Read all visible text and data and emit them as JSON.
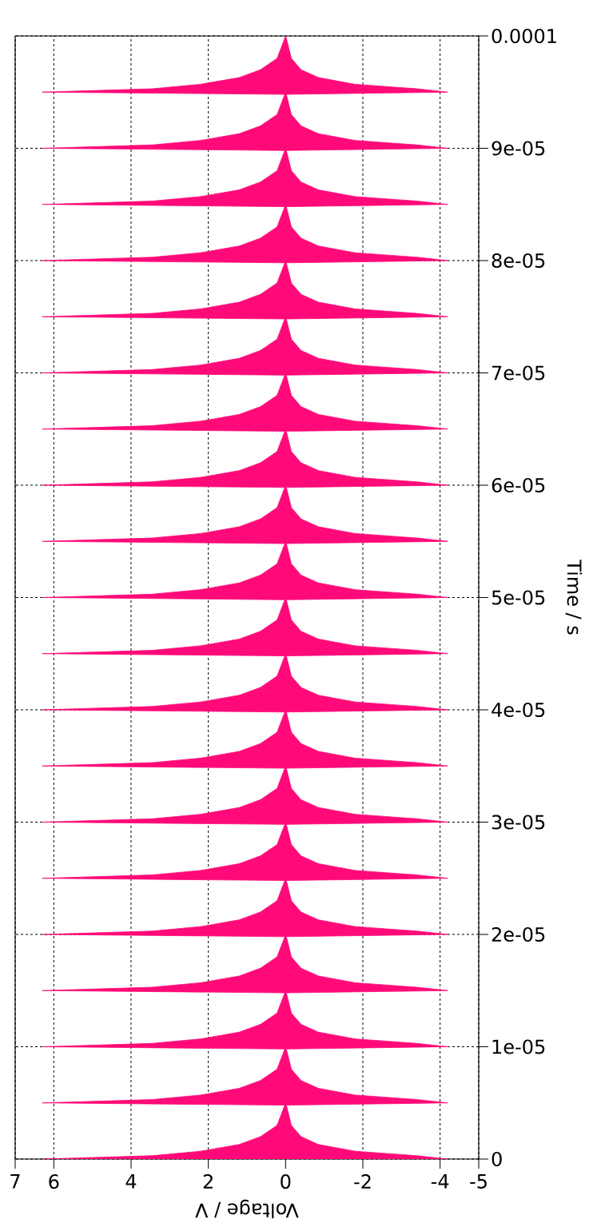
{
  "chart_data": {
    "type": "area",
    "orientation": "horizontal",
    "xlabel": "Voltage / V",
    "ylabel": "Time / s",
    "x": [
      0,
      3e-07,
      7e-07,
      1.3e-06,
      2e-06,
      3e-06,
      4.8e-06,
      5e-06,
      5.3e-06,
      5.7e-06,
      6.3e-06,
      7e-06,
      8e-06,
      9.8e-06,
      1e-05,
      1.03e-05,
      1.07e-05,
      1.13e-05,
      1.2e-05,
      1.3e-05,
      1.48e-05,
      1.5e-05,
      1.53e-05,
      1.57e-05,
      1.63e-05,
      1.7e-05,
      1.8e-05,
      1.98e-05,
      2e-05,
      2.03e-05,
      2.07e-05,
      2.13e-05,
      2.2e-05,
      2.3e-05,
      2.48e-05,
      2.5e-05,
      2.53e-05,
      2.57e-05,
      2.63e-05,
      2.7e-05,
      2.8e-05,
      2.98e-05,
      3e-05,
      3.03e-05,
      3.07e-05,
      3.13e-05,
      3.2e-05,
      3.3e-05,
      3.48e-05,
      3.5e-05,
      3.53e-05,
      3.57e-05,
      3.63e-05,
      3.7e-05,
      3.8e-05,
      3.98e-05,
      4e-05,
      4.03e-05,
      4.07e-05,
      4.13e-05,
      4.2e-05,
      4.3e-05,
      4.48e-05,
      4.5e-05,
      4.53e-05,
      4.57e-05,
      4.63e-05,
      4.7e-05,
      4.8e-05,
      4.98e-05,
      5e-05,
      5.03e-05,
      5.07e-05,
      5.13e-05,
      5.2e-05,
      5.3e-05,
      5.48e-05,
      5.5e-05,
      5.53e-05,
      5.57e-05,
      5.63e-05,
      5.7e-05,
      5.8e-05,
      5.98e-05,
      6e-05,
      6.03e-05,
      6.07e-05,
      6.13e-05,
      6.2e-05,
      6.3e-05,
      6.48e-05,
      6.5e-05,
      6.53e-05,
      6.57e-05,
      6.63e-05,
      6.7e-05,
      6.8e-05,
      6.98e-05,
      7e-05,
      7.03e-05,
      7.07e-05,
      7.13e-05,
      7.2e-05,
      7.3e-05,
      7.48e-05,
      7.5e-05,
      7.53e-05,
      7.57e-05,
      7.63e-05,
      7.7e-05,
      7.8e-05,
      7.98e-05,
      8e-05,
      8.03e-05,
      8.07e-05,
      8.13e-05,
      8.2e-05,
      8.3e-05,
      8.48e-05,
      8.5e-05,
      8.53e-05,
      8.57e-05,
      8.63e-05,
      8.7e-05,
      8.8e-05,
      8.98e-05,
      9e-05,
      9.03e-05,
      9.07e-05,
      9.13e-05,
      9.2e-05,
      9.3e-05,
      9.48e-05,
      9.5e-05,
      9.53e-05,
      9.57e-05,
      9.63e-05,
      9.7e-05,
      9.8e-05,
      9.98e-05,
      0.0001
    ],
    "series": [
      {
        "color": "#ff0a78",
        "values": [
          6.3,
          3.45,
          2.2,
          1.2,
          0.65,
          0.22,
          0.02,
          6.3,
          3.45,
          2.2,
          1.2,
          0.65,
          0.22,
          0.02,
          6.3,
          3.45,
          2.2,
          1.2,
          0.65,
          0.22,
          0.02,
          6.3,
          3.45,
          2.2,
          1.2,
          0.65,
          0.22,
          0.02,
          6.3,
          3.45,
          2.2,
          1.2,
          0.65,
          0.22,
          0.02,
          6.3,
          3.45,
          2.2,
          1.2,
          0.65,
          0.22,
          0.02,
          6.3,
          3.45,
          2.2,
          1.2,
          0.65,
          0.22,
          0.02,
          6.3,
          3.45,
          2.2,
          1.2,
          0.65,
          0.22,
          0.02,
          6.3,
          3.45,
          2.2,
          1.2,
          0.65,
          0.22,
          0.02,
          6.3,
          3.45,
          2.2,
          1.2,
          0.65,
          0.22,
          0.02,
          6.3,
          3.45,
          2.2,
          1.2,
          0.65,
          0.22,
          0.02,
          6.3,
          3.45,
          2.2,
          1.2,
          0.65,
          0.22,
          0.02,
          6.3,
          3.45,
          2.2,
          1.2,
          0.65,
          0.22,
          0.02,
          6.3,
          3.45,
          2.2,
          1.2,
          0.65,
          0.22,
          0.02,
          6.3,
          3.45,
          2.2,
          1.2,
          0.65,
          0.22,
          0.02,
          6.3,
          3.45,
          2.2,
          1.2,
          0.65,
          0.22,
          0.02,
          6.3,
          3.45,
          2.2,
          1.2,
          0.65,
          0.22,
          0.02,
          6.3,
          3.45,
          2.2,
          1.2,
          0.65,
          0.22,
          0.02,
          6.3,
          3.45,
          2.2,
          1.2,
          0.65,
          0.22,
          0.02,
          6.3,
          3.45,
          2.2,
          1.2,
          0.65,
          0.22,
          0.02,
          0
        ]
      },
      {
        "color": "#ff0a78",
        "values": [
          -4.2,
          -3.4,
          -1.8,
          -0.85,
          -0.4,
          -0.15,
          -0.02,
          -4.2,
          -3.4,
          -1.8,
          -0.85,
          -0.4,
          -0.15,
          -0.02,
          -4.2,
          -3.4,
          -1.8,
          -0.85,
          -0.4,
          -0.15,
          -0.02,
          -4.2,
          -3.4,
          -1.8,
          -0.85,
          -0.4,
          -0.15,
          -0.02,
          -4.2,
          -3.4,
          -1.8,
          -0.85,
          -0.4,
          -0.15,
          -0.02,
          -4.2,
          -3.4,
          -1.8,
          -0.85,
          -0.4,
          -0.15,
          -0.02,
          -4.2,
          -3.4,
          -1.8,
          -0.85,
          -0.4,
          -0.15,
          -0.02,
          -4.2,
          -3.4,
          -1.8,
          -0.85,
          -0.4,
          -0.15,
          -0.02,
          -4.2,
          -3.4,
          -1.8,
          -0.85,
          -0.4,
          -0.15,
          -0.02,
          -4.2,
          -3.4,
          -1.8,
          -0.85,
          -0.4,
          -0.15,
          -0.02,
          -4.2,
          -3.4,
          -1.8,
          -0.85,
          -0.4,
          -0.15,
          -0.02,
          -4.2,
          -3.4,
          -1.8,
          -0.85,
          -0.4,
          -0.15,
          -0.02,
          -4.2,
          -3.4,
          -1.8,
          -0.85,
          -0.4,
          -0.15,
          -0.02,
          -4.2,
          -3.4,
          -1.8,
          -0.85,
          -0.4,
          -0.15,
          -0.02,
          -4.2,
          -3.4,
          -1.8,
          -0.85,
          -0.4,
          -0.15,
          -0.02,
          -4.2,
          -3.4,
          -1.8,
          -0.85,
          -0.4,
          -0.15,
          -0.02,
          -4.2,
          -3.4,
          -1.8,
          -0.85,
          -0.4,
          -0.15,
          -0.02,
          -4.2,
          -3.4,
          -1.8,
          -0.85,
          -0.4,
          -0.15,
          -0.02,
          -4.2,
          -3.4,
          -1.8,
          -0.85,
          -0.4,
          -0.15,
          -0.02,
          -4.2,
          -3.4,
          -1.8,
          -0.85,
          -0.4,
          -0.15,
          -0.02,
          0
        ]
      }
    ],
    "xlim": [
      7,
      -5
    ],
    "ylim": [
      0,
      0.0001
    ],
    "xticks": [
      7,
      6,
      4,
      2,
      0,
      -2,
      -4,
      -5
    ],
    "yticks": [
      {
        "value": 0,
        "label": "0"
      },
      {
        "value": 1e-05,
        "label": "1e-05"
      },
      {
        "value": 2e-05,
        "label": "2e-05"
      },
      {
        "value": 3e-05,
        "label": "3e-05"
      },
      {
        "value": 4e-05,
        "label": "4e-05"
      },
      {
        "value": 5e-05,
        "label": "5e-05"
      },
      {
        "value": 6e-05,
        "label": "6e-05"
      },
      {
        "value": 7e-05,
        "label": "7e-05"
      },
      {
        "value": 8e-05,
        "label": "8e-05"
      },
      {
        "value": 9e-05,
        "label": "9e-05"
      },
      {
        "value": 0.0001,
        "label": "0.0001"
      }
    ],
    "grid": true
  }
}
